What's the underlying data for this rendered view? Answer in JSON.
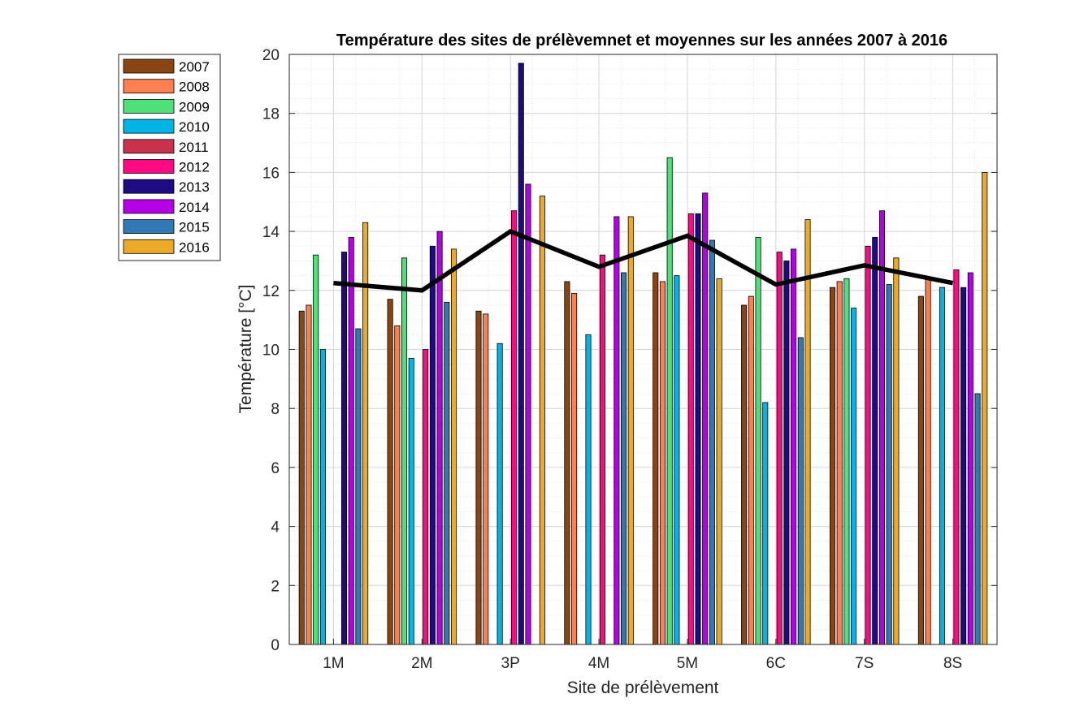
{
  "chart_data": {
    "type": "bar",
    "title": "Température des sites de prélèvemnet et moyennes sur les années 2007 à 2016",
    "xlabel": "Site de prélèvement",
    "ylabel": "Température [°C]",
    "ylim": [
      0,
      20
    ],
    "yticks": [
      "0",
      "2",
      "4",
      "6",
      "8",
      "10",
      "12",
      "14",
      "16",
      "18",
      "20"
    ],
    "categories": [
      "1M",
      "2M",
      "3P",
      "4M",
      "5M",
      "6C",
      "7S",
      "8S"
    ],
    "grid": true,
    "legend_position": "outside-top-left",
    "series": [
      {
        "name": "2007",
        "color": "#8B4513",
        "values": [
          11.3,
          11.7,
          11.3,
          12.3,
          12.6,
          11.5,
          12.1,
          11.8
        ]
      },
      {
        "name": "2008",
        "color": "#FF7F50",
        "values": [
          11.5,
          10.8,
          11.2,
          11.9,
          12.3,
          11.8,
          12.3,
          12.4
        ]
      },
      {
        "name": "2009",
        "color": "#50E07A",
        "values": [
          13.2,
          13.1,
          null,
          null,
          16.5,
          13.8,
          12.4,
          null
        ]
      },
      {
        "name": "2010",
        "color": "#00B4E6",
        "values": [
          10.0,
          9.7,
          10.2,
          10.5,
          12.5,
          8.2,
          11.4,
          12.1
        ]
      },
      {
        "name": "2011",
        "color": "#C8324B",
        "values": [
          null,
          null,
          null,
          null,
          null,
          null,
          null,
          null
        ]
      },
      {
        "name": "2012",
        "color": "#FF0A82",
        "values": [
          null,
          10.0,
          14.7,
          13.2,
          14.6,
          13.3,
          13.5,
          12.7
        ]
      },
      {
        "name": "2013",
        "color": "#1E0A82",
        "values": [
          13.3,
          13.5,
          19.7,
          null,
          14.6,
          13.0,
          13.8,
          12.1
        ]
      },
      {
        "name": "2014",
        "color": "#B400E6",
        "values": [
          13.8,
          14.0,
          15.6,
          14.5,
          15.3,
          13.4,
          14.7,
          12.6
        ]
      },
      {
        "name": "2015",
        "color": "#3278B4",
        "values": [
          10.7,
          11.6,
          null,
          12.6,
          13.7,
          10.4,
          12.2,
          8.5
        ]
      },
      {
        "name": "2016",
        "color": "#EBAA28",
        "values": [
          14.3,
          13.4,
          15.2,
          14.5,
          12.4,
          14.4,
          13.1,
          16.0
        ]
      }
    ],
    "mean_line": {
      "color": "#000000",
      "values": [
        12.25,
        12.0,
        14.0,
        12.8,
        13.85,
        12.2,
        12.85,
        12.25
      ]
    }
  }
}
